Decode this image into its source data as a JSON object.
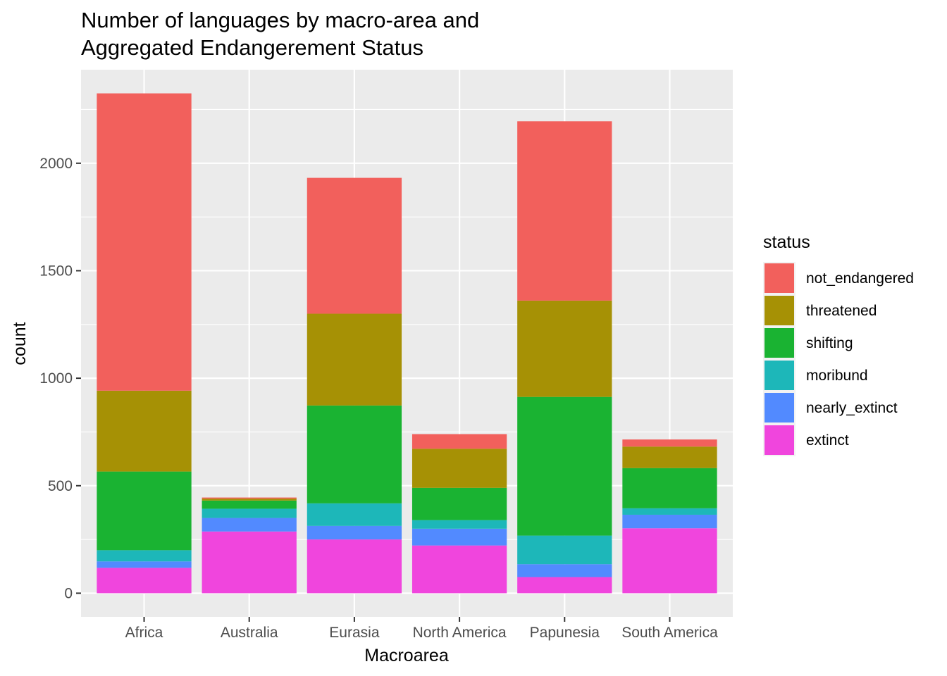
{
  "chart_data": {
    "type": "bar",
    "stacked": true,
    "title": [
      "Number of languages by macro-area and",
      "Aggregated Endangerement Status"
    ],
    "xlabel": "Macroarea",
    "ylabel": "count",
    "ylim": [
      -110,
      2435
    ],
    "yticks": [
      0,
      500,
      1000,
      1500,
      2000
    ],
    "grid": true,
    "legend": {
      "title": "status",
      "position": "right"
    },
    "categories": [
      "Africa",
      "Australia",
      "Eurasia",
      "North America",
      "Papunesia",
      "South America"
    ],
    "series": [
      {
        "name": "extinct",
        "color": "#F045DD",
        "values": [
          118,
          287,
          250,
          222,
          75,
          302
        ]
      },
      {
        "name": "nearly_extinct",
        "color": "#528AFF",
        "values": [
          30,
          63,
          63,
          78,
          60,
          63
        ]
      },
      {
        "name": "moribund",
        "color": "#1DB7B9",
        "values": [
          52,
          43,
          105,
          40,
          133,
          30
        ]
      },
      {
        "name": "shifting",
        "color": "#1AB332",
        "values": [
          366,
          38,
          455,
          150,
          645,
          187
        ]
      },
      {
        "name": "threatened",
        "color": "#A69105",
        "values": [
          376,
          9,
          427,
          182,
          448,
          100
        ]
      },
      {
        "name": "not_endangered",
        "color": "#F2605C",
        "values": [
          1383,
          5,
          632,
          68,
          834,
          33
        ]
      }
    ],
    "legend_order": [
      "not_endangered",
      "threatened",
      "shifting",
      "moribund",
      "nearly_extinct",
      "extinct"
    ]
  }
}
